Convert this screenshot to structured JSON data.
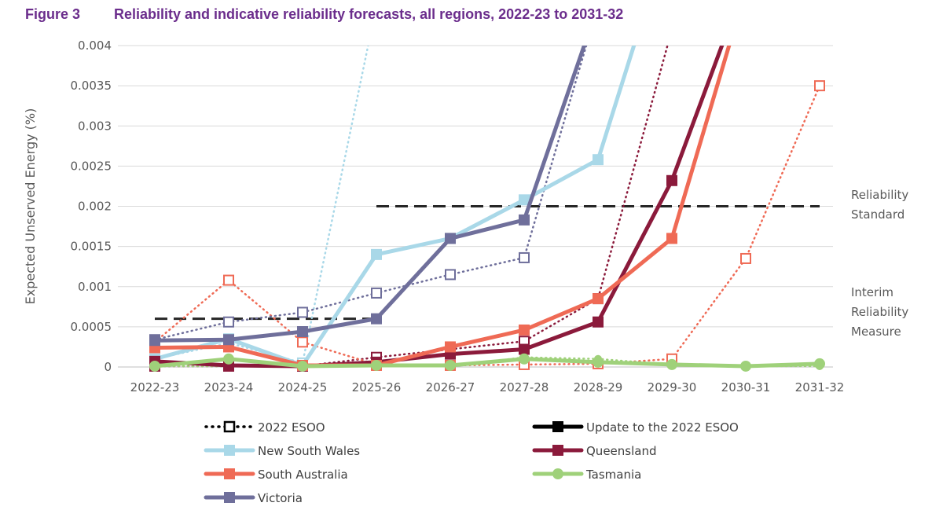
{
  "figure": {
    "number": "Figure 3",
    "title": "Reliability and indicative reliability forecasts, all regions, 2022-23 to 2031-32"
  },
  "chart_data": {
    "type": "line",
    "title": "Reliability and indicative reliability forecasts, all regions, 2022-23 to 2031-32",
    "xlabel": "",
    "ylabel": "Expected Unserved Energy (%)",
    "ylim": [
      0,
      0.004
    ],
    "yticks": [
      "0",
      "0.0005",
      "0.001",
      "0.0015",
      "0.002",
      "0.0025",
      "0.003",
      "0.0035",
      "0.004"
    ],
    "categories": [
      "2022-23",
      "2023-24",
      "2024-25",
      "2025-26",
      "2026-27",
      "2027-28",
      "2028-29",
      "2029-30",
      "2030-31",
      "2031-32"
    ],
    "grid": "horizontal",
    "legend_position": "bottom",
    "legend": {
      "style_entries": [
        {
          "label": "2022 ESOO",
          "style": "dotted",
          "color": "#000000"
        },
        {
          "label": "Update to the 2022 ESOO",
          "style": "solid",
          "color": "#000000"
        }
      ],
      "region_entries": [
        {
          "label": "New South Wales",
          "color": "#a9d8e8"
        },
        {
          "label": "Queensland",
          "color": "#8b1a3b"
        },
        {
          "label": "South Australia",
          "color": "#ef6a55"
        },
        {
          "label": "Tasmania",
          "color": "#9fd17a"
        },
        {
          "label": "Victoria",
          "color": "#6f6f9b"
        }
      ]
    },
    "reference_lines": [
      {
        "name": "Reliability Standard",
        "label_lines": [
          "Reliability",
          "Standard"
        ],
        "value": 0.002,
        "from": "2025-26",
        "to": "2031-32"
      },
      {
        "name": "Interim Reliability Measure",
        "label_lines": [
          "Interim",
          "Reliability",
          "Measure"
        ],
        "value": 0.0006,
        "from": "2022-23",
        "to": "2025-26"
      }
    ],
    "series": [
      {
        "name": "New South Wales",
        "style": "solid",
        "color": "#a9d8e8",
        "marker": "square",
        "values": [
          0.0001,
          0.00035,
          2e-05,
          0.0014,
          0.0016,
          0.00208,
          0.00258,
          null,
          null,
          null
        ],
        "beyond_top_after": 0.0055
      },
      {
        "name": "Queensland",
        "style": "solid",
        "color": "#8b1a3b",
        "marker": "square",
        "values": [
          7e-05,
          2e-05,
          1e-05,
          6e-05,
          0.00016,
          0.00022,
          0.00056,
          0.00232,
          null,
          null
        ],
        "beyond_top_after": 0.0048
      },
      {
        "name": "South Australia",
        "style": "solid",
        "color": "#ef6a55",
        "marker": "square",
        "values": [
          0.00024,
          0.00025,
          2e-05,
          2e-05,
          0.00025,
          0.00046,
          0.00085,
          0.0016,
          null,
          null
        ],
        "beyond_top_after": 0.0047
      },
      {
        "name": "Tasmania",
        "style": "solid",
        "color": "#9fd17a",
        "marker": "circle",
        "values": [
          1e-05,
          0.0001,
          1e-05,
          2e-05,
          2e-05,
          0.0001,
          6e-05,
          3e-05,
          1e-05,
          4e-05
        ]
      },
      {
        "name": "Victoria",
        "style": "solid",
        "color": "#6f6f9b",
        "marker": "square",
        "values": [
          0.00033,
          0.00034,
          0.00044,
          0.0006,
          0.0016,
          0.00183,
          null,
          null,
          null,
          null
        ],
        "beyond_top_after": 0.0045
      },
      {
        "name": "New South Wales",
        "style": "dotted",
        "color": "#a9d8e8",
        "marker": "square-open",
        "values": [
          0.0001,
          0.0003,
          5e-05,
          null,
          null,
          null,
          null,
          null,
          null,
          null
        ],
        "beyond_top_after": 0.0045
      },
      {
        "name": "Queensland",
        "style": "dotted",
        "color": "#8b1a3b",
        "marker": "square-open",
        "values": [
          1e-05,
          1e-05,
          1e-05,
          0.00012,
          0.00022,
          0.00032,
          0.00085,
          null,
          null,
          null
        ],
        "beyond_top_after": 0.0042
      },
      {
        "name": "South Australia",
        "style": "dotted",
        "color": "#ef6a55",
        "marker": "square-open",
        "values": [
          0.00031,
          0.00108,
          0.00031,
          3e-05,
          2e-05,
          3e-05,
          4e-05,
          0.0001,
          0.00135,
          0.0035
        ]
      },
      {
        "name": "Tasmania",
        "style": "dotted",
        "color": "#9fd17a",
        "marker": "circle",
        "values": [
          1e-05,
          1e-05,
          1e-05,
          1e-05,
          1e-05,
          0.00012,
          0.0001,
          3e-05,
          1e-05,
          1e-05
        ]
      },
      {
        "name": "Victoria",
        "style": "dotted",
        "color": "#6f6f9b",
        "marker": "square-open",
        "values": [
          0.00034,
          0.00056,
          0.00068,
          0.00092,
          0.00115,
          0.00136,
          null,
          null,
          null,
          null
        ],
        "beyond_top_after": 0.0045
      }
    ]
  }
}
